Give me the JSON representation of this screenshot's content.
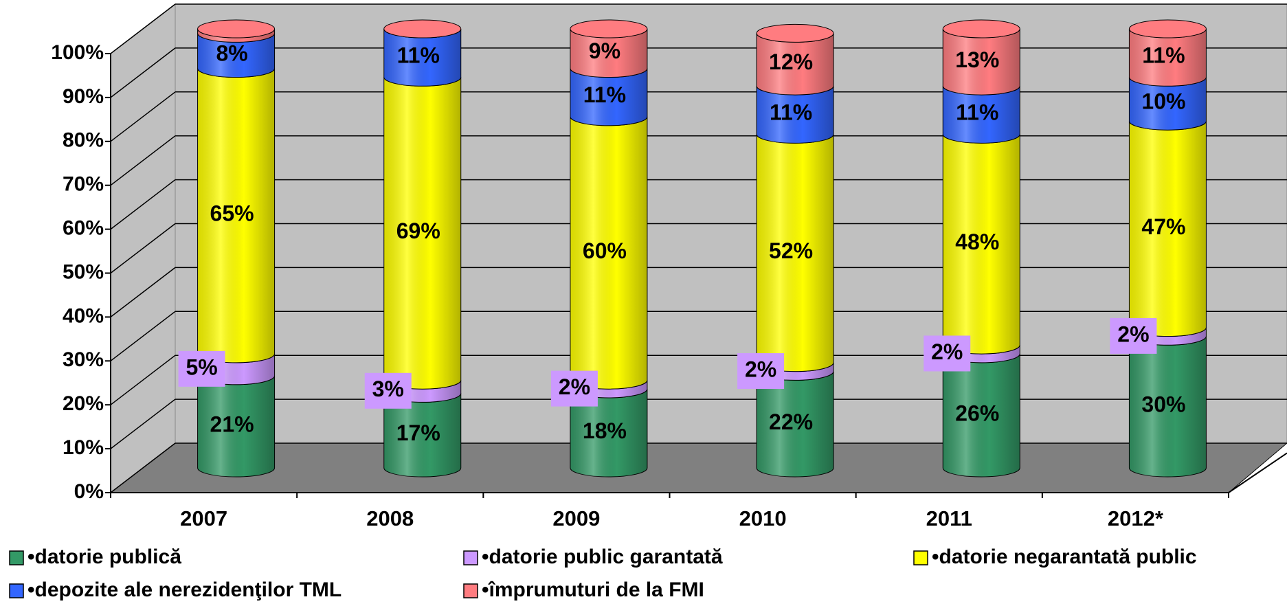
{
  "chart_data": {
    "type": "bar",
    "stacked": true,
    "shape": "cylinder",
    "categories": [
      "2007",
      "2008",
      "2009",
      "2010",
      "2011",
      "2012*"
    ],
    "series": [
      {
        "name": "•datorie publică",
        "color": "#339966",
        "values": [
          21,
          17,
          18,
          22,
          26,
          30
        ],
        "value_labels": [
          "21%",
          "17%",
          "18%",
          "22%",
          "26%",
          "30%"
        ]
      },
      {
        "name": "•datorie public garantată",
        "color": "#cc99ff",
        "values": [
          5,
          3,
          2,
          2,
          2,
          2
        ],
        "value_labels": [
          "5%",
          "3%",
          "2%",
          "2%",
          "2%",
          "2%"
        ]
      },
      {
        "name": "•datorie negarantată public",
        "color": "#ffff00",
        "values": [
          65,
          69,
          60,
          52,
          48,
          47
        ],
        "value_labels": [
          "65%",
          "69%",
          "60%",
          "52%",
          "48%",
          "47%"
        ]
      },
      {
        "name": "•depozite ale nerezidenţilor TML",
        "color": "#3366ff",
        "values": [
          8,
          11,
          11,
          11,
          11,
          10
        ],
        "value_labels": [
          "8%",
          "11%",
          "11%",
          "11%",
          "11%",
          "10%"
        ]
      },
      {
        "name": "•împrumuturi de la FMI",
        "color": "#ff7c80",
        "values": [
          1,
          0,
          9,
          12,
          13,
          11
        ],
        "value_labels": [
          null,
          null,
          "9%",
          "12%",
          "13%",
          "11%"
        ]
      }
    ],
    "ylim": [
      0,
      100
    ],
    "yticks": [
      {
        "value": 0,
        "label": "0%"
      },
      {
        "value": 10,
        "label": "10%"
      },
      {
        "value": 20,
        "label": "20%"
      },
      {
        "value": 30,
        "label": "30%"
      },
      {
        "value": 40,
        "label": "40%"
      },
      {
        "value": 50,
        "label": "50%"
      },
      {
        "value": 60,
        "label": "60%"
      },
      {
        "value": 70,
        "label": "70%"
      },
      {
        "value": 80,
        "label": "80%"
      },
      {
        "value": 90,
        "label": "90%"
      },
      {
        "value": 100,
        "label": "100%"
      }
    ],
    "grid": true,
    "legend": "bottom"
  }
}
